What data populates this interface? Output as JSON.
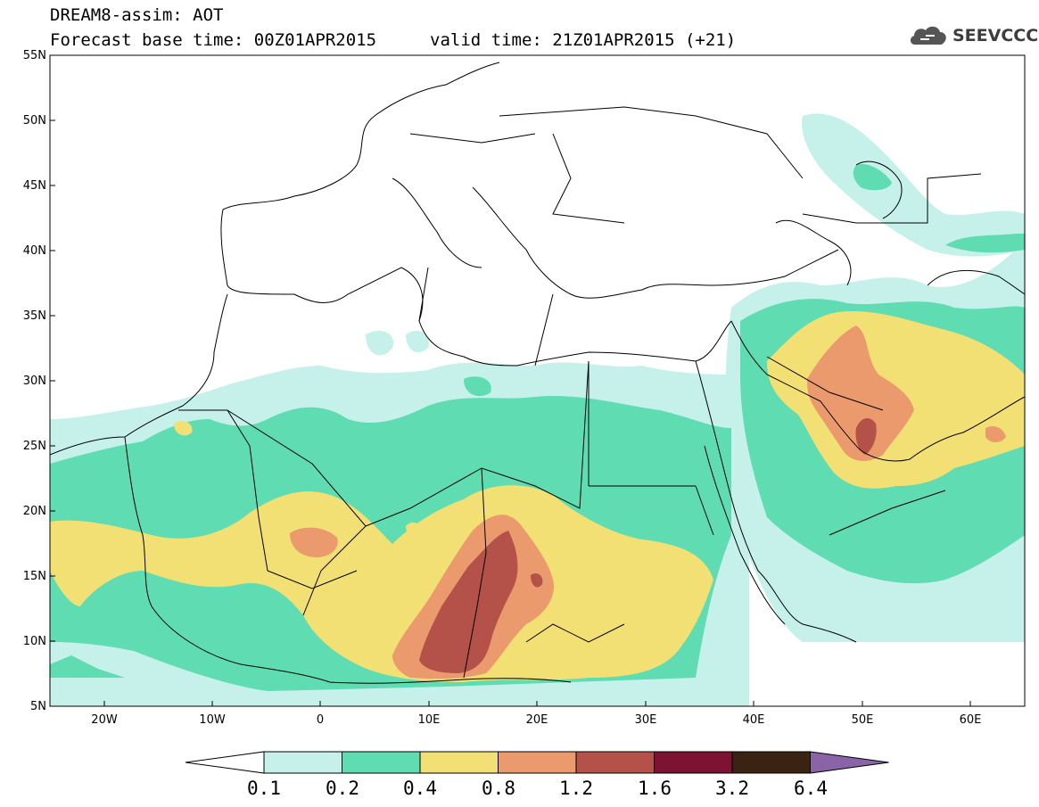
{
  "title": {
    "line1": "DREAM8-assim: AOT",
    "line2": "Forecast base time: 00Z01APR2015",
    "valid": "valid time: 21Z01APR2015 (+21)"
  },
  "logo": {
    "text": "SEEVCCC",
    "icon": "cloud-icon"
  },
  "map": {
    "lat_range": [
      5,
      55
    ],
    "lon_range": [
      -25,
      65
    ],
    "lat_labels": [
      "55N",
      "50N",
      "45N",
      "40N",
      "35N",
      "30N",
      "25N",
      "20N",
      "15N",
      "10N",
      "5N"
    ],
    "lon_labels": [
      "20W",
      "10W",
      "0",
      "10E",
      "20E",
      "30E",
      "40E",
      "50E",
      "60E"
    ]
  },
  "colorbar": {
    "labels": [
      "0.1",
      "0.2",
      "0.4",
      "0.8",
      "1.2",
      "1.6",
      "3.2",
      "6.4"
    ],
    "colors": [
      "#ffffff",
      "#c6f0ea",
      "#5fdcb2",
      "#f3e074",
      "#ea9a6c",
      "#b4524a",
      "#7d1233",
      "#3b2314",
      "#8b64a8"
    ]
  }
}
